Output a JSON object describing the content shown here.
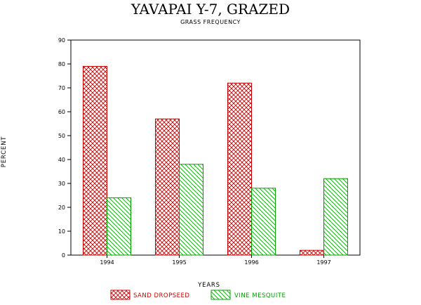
{
  "chart_data": {
    "type": "bar",
    "title": "YAVAPAI Y-7, GRAZED",
    "subtitle": "GRASS FREQUENCY",
    "xlabel": "YEARS",
    "ylabel": "PERCENT",
    "categories": [
      "1994",
      "1995",
      "1996",
      "1997"
    ],
    "series": [
      {
        "name": "SAND DROPSEED",
        "values": [
          79,
          57,
          72,
          2
        ],
        "color": "#cc0000",
        "pattern": "crosshatch"
      },
      {
        "name": "VINE MESQUITE",
        "values": [
          24,
          38,
          28,
          32
        ],
        "color": "#00a000",
        "pattern": "diagonal-hatch"
      }
    ],
    "ylim": [
      0,
      90
    ],
    "yticks": [
      0,
      10,
      20,
      30,
      40,
      50,
      60,
      70,
      80,
      90
    ],
    "grid": false,
    "legend_position": "bottom-center"
  }
}
